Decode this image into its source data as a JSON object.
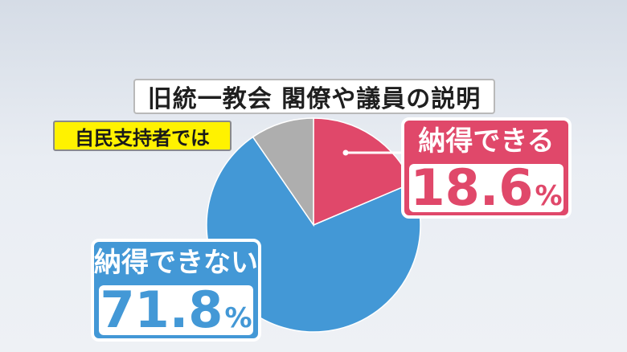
{
  "title": "旧統一教会 閣僚や議員の説明",
  "subtitle": "自民支持者では",
  "colors": {
    "agree": "#e0486a",
    "disagree": "#4398d6",
    "other": "#aeaeae"
  },
  "chart_data": {
    "type": "pie",
    "title": "旧統一教会 閣僚や議員の説明",
    "subtitle": "自民支持者では",
    "slices": [
      {
        "label": "納得できる",
        "value": 18.6,
        "color": "#e0486a"
      },
      {
        "label": "納得できない",
        "value": 71.8,
        "color": "#4398d6"
      },
      {
        "label": "",
        "value": 9.6,
        "color": "#aeaeae"
      }
    ],
    "start_angle": "top",
    "direction": "clockwise",
    "unit": "%"
  },
  "labels": {
    "agree": {
      "name": "納得できる",
      "value": "18.6",
      "unit": "%"
    },
    "disagree": {
      "name": "納得できない",
      "value": "71.8",
      "unit": "%"
    }
  }
}
